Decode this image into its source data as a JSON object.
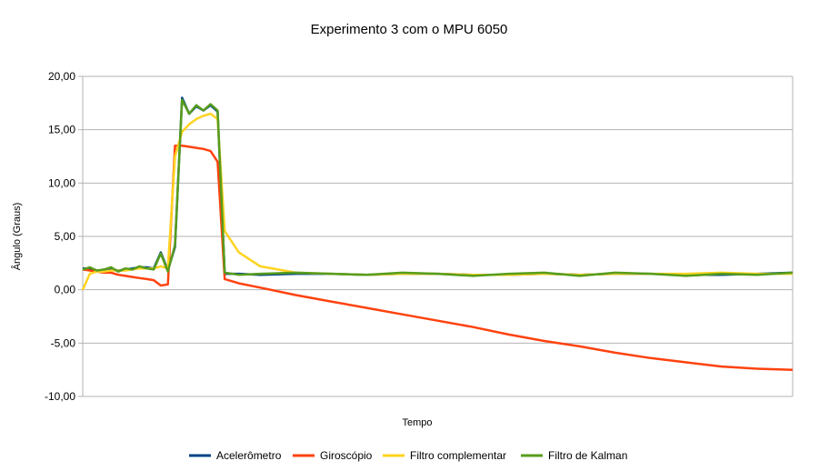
{
  "chart_data": {
    "type": "line",
    "title": "Experimento 3 com o MPU 6050",
    "xlabel": "Tempo",
    "ylabel": "Ângulo (Graus)",
    "ylim": [
      -10,
      20
    ],
    "yticks": [
      20,
      15,
      10,
      5,
      0,
      -5,
      -10
    ],
    "ytick_labels": [
      "20,00",
      "15,00",
      "10,00",
      "5,00",
      "0,00",
      "-5,00",
      "-10,00"
    ],
    "xlim": [
      0,
      100
    ],
    "grid": true,
    "legend_position": "bottom",
    "x": [
      0,
      1,
      2,
      3,
      4,
      5,
      6,
      7,
      8,
      9,
      10,
      11,
      12,
      13,
      14,
      15,
      16,
      17,
      18,
      19,
      20,
      22,
      25,
      30,
      35,
      40,
      45,
      50,
      55,
      60,
      65,
      70,
      75,
      80,
      85,
      90,
      95,
      100
    ],
    "series": [
      {
        "name": "Acelerômetro",
        "color": "#004586",
        "values": [
          2.0,
          2.0,
          1.8,
          1.7,
          1.9,
          1.8,
          1.9,
          2.0,
          2.1,
          2.1,
          2.0,
          3.5,
          1.8,
          4.0,
          18.0,
          16.5,
          17.2,
          16.8,
          17.3,
          16.7,
          1.5,
          1.5,
          1.4,
          1.5,
          1.5,
          1.4,
          1.5,
          1.5,
          1.4,
          1.4,
          1.5,
          1.4,
          1.5,
          1.5,
          1.4,
          1.4,
          1.5,
          1.6
        ]
      },
      {
        "name": "Giroscópio",
        "color": "#ff420e",
        "values": [
          1.9,
          1.8,
          1.7,
          1.6,
          1.6,
          1.4,
          1.3,
          1.2,
          1.1,
          1.0,
          0.9,
          0.4,
          0.5,
          13.5,
          13.5,
          13.4,
          13.3,
          13.2,
          13.0,
          12.0,
          1.0,
          0.6,
          0.2,
          -0.5,
          -1.1,
          -1.7,
          -2.3,
          -2.9,
          -3.5,
          -4.2,
          -4.8,
          -5.3,
          -5.9,
          -6.4,
          -6.8,
          -7.2,
          -7.4,
          -7.5
        ]
      },
      {
        "name": "Filtro complementar",
        "color": "#ffd320",
        "values": [
          0.0,
          1.5,
          1.7,
          1.7,
          1.8,
          1.8,
          1.8,
          1.9,
          2.0,
          2.0,
          2.0,
          2.2,
          2.0,
          12.5,
          14.8,
          15.5,
          16.0,
          16.3,
          16.5,
          16.0,
          5.5,
          3.5,
          2.2,
          1.6,
          1.5,
          1.4,
          1.5,
          1.5,
          1.4,
          1.4,
          1.5,
          1.4,
          1.5,
          1.5,
          1.5,
          1.6,
          1.5,
          1.5
        ]
      },
      {
        "name": "Filtro de Kalman",
        "color": "#579d1c",
        "values": [
          1.9,
          2.1,
          1.8,
          1.9,
          2.1,
          1.7,
          2.0,
          1.9,
          2.2,
          2.0,
          1.9,
          3.4,
          1.7,
          4.2,
          17.8,
          16.5,
          17.3,
          16.8,
          17.4,
          16.8,
          1.6,
          1.4,
          1.5,
          1.6,
          1.5,
          1.4,
          1.6,
          1.5,
          1.3,
          1.5,
          1.6,
          1.3,
          1.6,
          1.5,
          1.3,
          1.5,
          1.4,
          1.6
        ]
      }
    ]
  }
}
